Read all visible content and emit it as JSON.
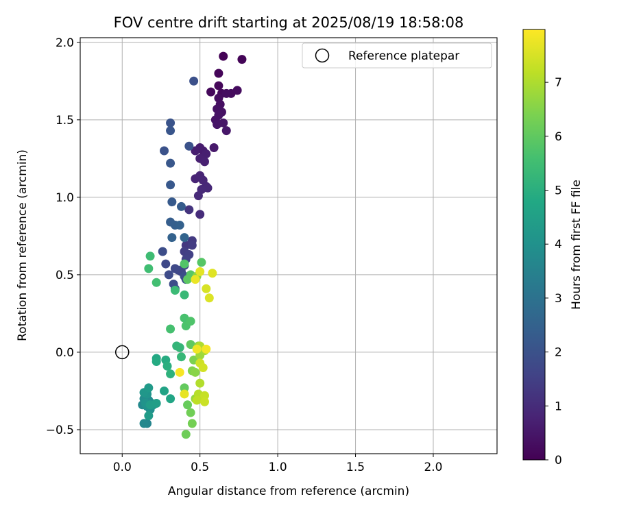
{
  "chart_data": {
    "type": "scatter",
    "title": "FOV centre drift starting at 2025/08/19 18:58:08",
    "xlabel": "Angular distance from reference (arcmin)",
    "ylabel": "Rotation from reference (arcmin)",
    "colorbar_label": "Hours from first FF file",
    "xlim": [
      -0.27,
      2.41
    ],
    "ylim": [
      -0.655,
      2.03
    ],
    "clim": [
      0,
      7.98
    ],
    "colormap": "viridis",
    "grid": true,
    "legend_position": "top-right",
    "x_ticks": [
      0.0,
      0.5,
      1.0,
      1.5,
      2.0
    ],
    "y_ticks": [
      -0.5,
      0.0,
      0.5,
      1.0,
      1.5,
      2.0
    ],
    "colorbar_ticks": [
      0,
      1,
      2,
      3,
      4,
      5,
      6,
      7
    ],
    "reference": {
      "label": "Reference platepar",
      "x": 0.0,
      "y": 0.0
    },
    "points": [
      [
        0.65,
        1.91,
        0.05
      ],
      [
        0.77,
        1.89,
        0.08
      ],
      [
        0.62,
        1.8,
        0.12
      ],
      [
        0.62,
        1.72,
        0.15
      ],
      [
        0.57,
        1.68,
        0.18
      ],
      [
        0.64,
        1.67,
        0.2
      ],
      [
        0.7,
        1.67,
        0.22
      ],
      [
        0.74,
        1.69,
        0.25
      ],
      [
        0.67,
        1.67,
        0.28
      ],
      [
        0.62,
        1.64,
        0.3
      ],
      [
        0.63,
        1.6,
        0.33
      ],
      [
        0.61,
        1.57,
        0.36
      ],
      [
        0.64,
        1.55,
        0.38
      ],
      [
        0.62,
        1.53,
        0.4
      ],
      [
        0.6,
        1.5,
        0.42
      ],
      [
        0.61,
        1.47,
        0.45
      ],
      [
        0.65,
        1.48,
        0.47
      ],
      [
        0.67,
        1.43,
        0.5
      ],
      [
        0.59,
        1.32,
        0.55
      ],
      [
        0.52,
        1.3,
        0.6
      ],
      [
        0.5,
        1.32,
        0.62
      ],
      [
        0.47,
        1.3,
        0.65
      ],
      [
        0.54,
        1.28,
        0.68
      ],
      [
        0.5,
        1.25,
        0.7
      ],
      [
        0.53,
        1.23,
        0.72
      ],
      [
        0.47,
        1.12,
        0.8
      ],
      [
        0.5,
        1.14,
        0.82
      ],
      [
        0.52,
        1.11,
        0.85
      ],
      [
        0.54,
        1.07,
        0.88
      ],
      [
        0.55,
        1.06,
        0.9
      ],
      [
        0.51,
        1.05,
        0.92
      ],
      [
        0.49,
        1.01,
        0.95
      ],
      [
        0.5,
        0.89,
        1.0
      ],
      [
        0.43,
        0.92,
        1.2
      ],
      [
        0.41,
        0.69,
        1.3
      ],
      [
        0.45,
        0.72,
        1.35
      ],
      [
        0.45,
        0.69,
        1.4
      ],
      [
        0.4,
        0.65,
        1.45
      ],
      [
        0.43,
        0.63,
        1.5
      ],
      [
        0.41,
        0.6,
        1.55
      ],
      [
        0.4,
        0.56,
        1.6
      ],
      [
        0.38,
        0.52,
        1.65
      ],
      [
        0.36,
        0.53,
        1.7
      ],
      [
        0.34,
        0.54,
        1.75
      ],
      [
        0.3,
        0.5,
        1.8
      ],
      [
        0.33,
        0.44,
        1.85
      ],
      [
        0.34,
        0.41,
        1.9
      ],
      [
        0.41,
        0.47,
        1.95
      ],
      [
        0.28,
        0.57,
        1.75
      ],
      [
        0.26,
        0.65,
        1.85
      ],
      [
        0.4,
        0.49,
        1.9
      ],
      [
        0.46,
        1.75,
        1.95
      ],
      [
        0.43,
        1.33,
        2.0
      ],
      [
        0.27,
        1.3,
        2.0
      ],
      [
        0.31,
        1.48,
        2.05
      ],
      [
        0.31,
        1.43,
        2.1
      ],
      [
        0.31,
        1.22,
        2.15
      ],
      [
        0.31,
        1.08,
        2.2
      ],
      [
        0.32,
        0.97,
        2.25
      ],
      [
        0.38,
        0.94,
        2.3
      ],
      [
        0.31,
        0.84,
        2.35
      ],
      [
        0.34,
        0.82,
        2.4
      ],
      [
        0.37,
        0.82,
        2.45
      ],
      [
        0.32,
        0.74,
        2.5
      ],
      [
        0.4,
        0.74,
        2.55
      ],
      [
        0.16,
        -0.46,
        3.6
      ],
      [
        0.14,
        -0.46,
        3.7
      ],
      [
        0.13,
        -0.34,
        3.75
      ],
      [
        0.17,
        -0.31,
        3.8
      ],
      [
        0.14,
        -0.3,
        3.85
      ],
      [
        0.19,
        -0.33,
        3.9
      ],
      [
        0.18,
        -0.37,
        3.95
      ],
      [
        0.16,
        -0.35,
        4.0
      ],
      [
        0.15,
        -0.33,
        4.05
      ],
      [
        0.16,
        -0.27,
        4.1
      ],
      [
        0.2,
        -0.34,
        4.15
      ],
      [
        0.14,
        -0.26,
        4.2
      ],
      [
        0.17,
        -0.23,
        4.3
      ],
      [
        0.17,
        -0.41,
        4.35
      ],
      [
        0.18,
        -0.34,
        4.4
      ],
      [
        0.22,
        -0.33,
        4.45
      ],
      [
        0.27,
        -0.25,
        4.6
      ],
      [
        0.31,
        -0.3,
        4.7
      ],
      [
        0.22,
        -0.04,
        4.8
      ],
      [
        0.22,
        -0.06,
        4.85
      ],
      [
        0.28,
        -0.05,
        4.9
      ],
      [
        0.29,
        -0.09,
        5.0
      ],
      [
        0.31,
        -0.14,
        5.1
      ],
      [
        0.35,
        0.04,
        5.2
      ],
      [
        0.37,
        0.03,
        5.25
      ],
      [
        0.38,
        -0.03,
        5.3
      ],
      [
        0.4,
        0.37,
        5.35
      ],
      [
        0.34,
        0.4,
        5.4
      ],
      [
        0.18,
        0.62,
        5.45
      ],
      [
        0.17,
        0.54,
        5.5
      ],
      [
        0.22,
        0.45,
        5.55
      ],
      [
        0.31,
        0.15,
        5.6
      ],
      [
        0.4,
        0.22,
        5.65
      ],
      [
        0.41,
        0.17,
        5.7
      ],
      [
        0.44,
        0.2,
        5.75
      ],
      [
        0.4,
        0.57,
        5.8
      ],
      [
        0.51,
        0.58,
        5.85
      ],
      [
        0.44,
        0.5,
        5.9
      ],
      [
        0.42,
        0.47,
        5.95
      ],
      [
        0.44,
        0.05,
        6.0
      ],
      [
        0.4,
        -0.23,
        6.05
      ],
      [
        0.42,
        -0.34,
        6.1
      ],
      [
        0.41,
        -0.53,
        6.2
      ],
      [
        0.44,
        -0.39,
        6.25
      ],
      [
        0.45,
        -0.46,
        6.3
      ],
      [
        0.46,
        -0.05,
        6.4
      ],
      [
        0.45,
        -0.12,
        6.45
      ],
      [
        0.49,
        0.04,
        6.5
      ],
      [
        0.47,
        -0.13,
        6.55
      ],
      [
        0.48,
        0.49,
        6.6
      ],
      [
        0.47,
        -0.3,
        6.7
      ],
      [
        0.5,
        -0.02,
        6.8
      ],
      [
        0.53,
        0.01,
        6.9
      ],
      [
        0.5,
        0.04,
        7.0
      ],
      [
        0.5,
        -0.2,
        7.05
      ],
      [
        0.49,
        -0.27,
        7.1
      ],
      [
        0.52,
        -0.3,
        7.15
      ],
      [
        0.48,
        -0.31,
        7.2
      ],
      [
        0.53,
        -0.28,
        7.3
      ],
      [
        0.53,
        -0.32,
        7.35
      ],
      [
        0.5,
        -0.07,
        7.4
      ],
      [
        0.52,
        -0.1,
        7.45
      ],
      [
        0.54,
        0.41,
        7.5
      ],
      [
        0.56,
        0.35,
        7.55
      ],
      [
        0.58,
        0.51,
        7.6
      ],
      [
        0.5,
        0.52,
        7.65
      ],
      [
        0.4,
        -0.27,
        7.7
      ],
      [
        0.47,
        0.47,
        7.75
      ],
      [
        0.48,
        0.02,
        7.8
      ],
      [
        0.54,
        0.02,
        7.85
      ],
      [
        0.37,
        -0.13,
        7.9
      ]
    ]
  }
}
